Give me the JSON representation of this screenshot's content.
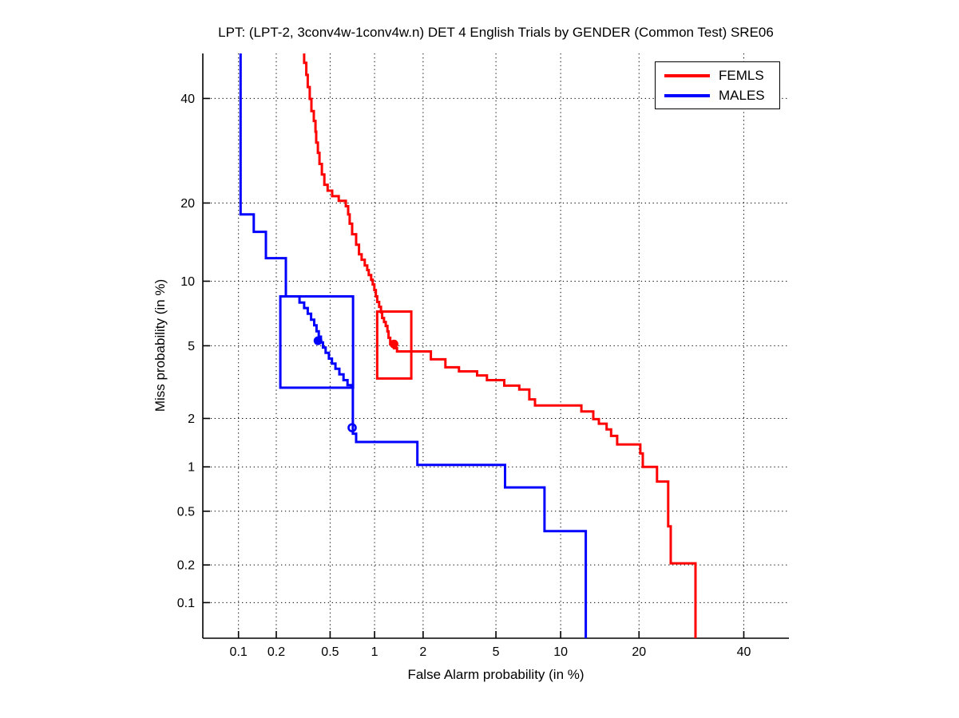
{
  "figure": {
    "title": "LPT: (LPT-2, 3conv4w-1conv4w.n) DET 4 English Trials by GENDER (Common Test) SRE06",
    "xlabel": "False Alarm probability (in %)",
    "ylabel": "Miss probability (in %)"
  },
  "chart_data": {
    "type": "line",
    "subtype": "DET-curve",
    "title": "LPT: (LPT-2, 3conv4w-1conv4w.n) DET 4 English Trials by GENDER (Common Test) SRE06",
    "xlabel": "False Alarm probability (in %)",
    "ylabel": "Miss probability (in %)",
    "scale": "probit-probit (normal deviate scale on both axes)",
    "grid": "dotted",
    "legend_position": "top-right",
    "xlim": [
      0.05,
      50
    ],
    "ylim": [
      0.05,
      50
    ],
    "x_ticks": [
      0.1,
      0.2,
      0.5,
      1,
      2,
      5,
      10,
      20,
      40
    ],
    "y_ticks": [
      0.1,
      0.2,
      0.5,
      1,
      2,
      5,
      10,
      20,
      40
    ],
    "x_tick_labels": [
      "0.1",
      "0.2",
      "0.5",
      "1",
      "2",
      "5",
      "10",
      "20",
      "40"
    ],
    "y_tick_labels": [
      "0.1",
      "0.2",
      "0.5",
      "1",
      "2",
      "5",
      "10",
      "20",
      "40"
    ],
    "series": [
      {
        "name": "FEMLS",
        "color": "#ff0000",
        "points": [
          [
            0.325,
            50
          ],
          [
            0.325,
            47.9
          ],
          [
            0.337,
            47.9
          ],
          [
            0.337,
            45.2
          ],
          [
            0.345,
            45.2
          ],
          [
            0.345,
            42.5
          ],
          [
            0.357,
            42.5
          ],
          [
            0.357,
            39.9
          ],
          [
            0.367,
            39.9
          ],
          [
            0.367,
            37.3
          ],
          [
            0.382,
            37.3
          ],
          [
            0.382,
            35.2
          ],
          [
            0.393,
            35.2
          ],
          [
            0.393,
            33.0
          ],
          [
            0.398,
            33.0
          ],
          [
            0.398,
            30.8
          ],
          [
            0.409,
            30.8
          ],
          [
            0.409,
            28.8
          ],
          [
            0.42,
            28.8
          ],
          [
            0.42,
            26.7
          ],
          [
            0.437,
            26.7
          ],
          [
            0.437,
            24.8
          ],
          [
            0.455,
            24.8
          ],
          [
            0.455,
            23.0
          ],
          [
            0.48,
            23.0
          ],
          [
            0.48,
            22.0
          ],
          [
            0.517,
            22.0
          ],
          [
            0.517,
            21.1
          ],
          [
            0.574,
            21.1
          ],
          [
            0.574,
            20.35
          ],
          [
            0.643,
            20.35
          ],
          [
            0.643,
            19.5
          ],
          [
            0.667,
            19.5
          ],
          [
            0.667,
            18.25
          ],
          [
            0.683,
            18.25
          ],
          [
            0.683,
            16.9
          ],
          [
            0.71,
            16.9
          ],
          [
            0.71,
            15.45
          ],
          [
            0.755,
            15.45
          ],
          [
            0.755,
            14.1
          ],
          [
            0.79,
            14.1
          ],
          [
            0.79,
            12.93
          ],
          [
            0.822,
            12.93
          ],
          [
            0.822,
            12.28
          ],
          [
            0.862,
            12.28
          ],
          [
            0.862,
            11.65
          ],
          [
            0.895,
            11.65
          ],
          [
            0.895,
            11.15
          ],
          [
            0.916,
            11.15
          ],
          [
            0.916,
            10.63
          ],
          [
            0.95,
            10.63
          ],
          [
            0.95,
            10.15
          ],
          [
            0.973,
            10.15
          ],
          [
            0.973,
            9.68
          ],
          [
            0.997,
            9.68
          ],
          [
            0.997,
            9.15
          ],
          [
            1.02,
            9.15
          ],
          [
            1.02,
            8.58
          ],
          [
            1.04,
            8.58
          ],
          [
            1.04,
            8.1
          ],
          [
            1.07,
            8.1
          ],
          [
            1.07,
            7.7
          ],
          [
            1.1,
            7.7
          ],
          [
            1.1,
            7.26
          ],
          [
            1.12,
            7.26
          ],
          [
            1.12,
            6.83
          ],
          [
            1.15,
            6.83
          ],
          [
            1.15,
            6.54
          ],
          [
            1.18,
            6.54
          ],
          [
            1.18,
            6.26
          ],
          [
            1.21,
            6.26
          ],
          [
            1.21,
            5.89
          ],
          [
            1.23,
            5.89
          ],
          [
            1.23,
            5.48
          ],
          [
            1.26,
            5.48
          ],
          [
            1.26,
            5.09
          ],
          [
            1.33,
            5.09
          ],
          [
            1.33,
            4.86
          ],
          [
            1.39,
            4.86
          ],
          [
            1.39,
            4.68
          ],
          [
            1.48,
            4.68
          ],
          [
            2.22,
            4.68
          ],
          [
            2.22,
            4.26
          ],
          [
            2.69,
            4.26
          ],
          [
            2.69,
            3.87
          ],
          [
            3.2,
            3.87
          ],
          [
            3.2,
            3.68
          ],
          [
            4.0,
            3.68
          ],
          [
            4.0,
            3.5
          ],
          [
            4.5,
            3.5
          ],
          [
            4.5,
            3.3
          ],
          [
            5.5,
            3.3
          ],
          [
            5.5,
            3.08
          ],
          [
            6.5,
            3.08
          ],
          [
            6.5,
            2.93
          ],
          [
            7.25,
            2.93
          ],
          [
            7.25,
            2.58
          ],
          [
            7.7,
            2.58
          ],
          [
            7.7,
            2.38
          ],
          [
            12.2,
            2.38
          ],
          [
            12.2,
            2.2
          ],
          [
            13.6,
            2.2
          ],
          [
            13.6,
            1.98
          ],
          [
            14.3,
            1.98
          ],
          [
            14.3,
            1.86
          ],
          [
            15.3,
            1.86
          ],
          [
            15.3,
            1.72
          ],
          [
            15.9,
            1.72
          ],
          [
            15.9,
            1.57
          ],
          [
            16.75,
            1.57
          ],
          [
            16.75,
            1.39
          ],
          [
            20.2,
            1.39
          ],
          [
            20.2,
            1.22
          ],
          [
            20.6,
            1.22
          ],
          [
            20.6,
            1.0
          ],
          [
            22.95,
            1.0
          ],
          [
            22.95,
            0.8
          ],
          [
            24.9,
            0.8
          ],
          [
            24.9,
            0.39
          ],
          [
            25.35,
            0.39
          ],
          [
            25.35,
            0.206
          ],
          [
            30.0,
            0.206
          ],
          [
            30.0,
            0.05
          ]
        ],
        "operating_point": {
          "fa": 1.33,
          "miss": 5.1,
          "marker": "filled-circle"
        },
        "confidence_box": {
          "fa": [
            1.04,
            1.7
          ],
          "miss": [
            3.37,
            7.32
          ]
        }
      },
      {
        "name": "MALES",
        "color": "#0000ff",
        "points": [
          [
            0.104,
            50
          ],
          [
            0.104,
            18.25
          ],
          [
            0.133,
            18.25
          ],
          [
            0.133,
            15.77
          ],
          [
            0.166,
            15.77
          ],
          [
            0.166,
            12.47
          ],
          [
            0.237,
            12.47
          ],
          [
            0.237,
            8.58
          ],
          [
            0.3,
            8.58
          ],
          [
            0.3,
            8.05
          ],
          [
            0.325,
            8.05
          ],
          [
            0.325,
            7.6
          ],
          [
            0.345,
            7.6
          ],
          [
            0.345,
            7.15
          ],
          [
            0.365,
            7.15
          ],
          [
            0.365,
            6.7
          ],
          [
            0.385,
            6.7
          ],
          [
            0.385,
            6.3
          ],
          [
            0.4,
            6.3
          ],
          [
            0.4,
            5.9
          ],
          [
            0.415,
            5.9
          ],
          [
            0.415,
            5.55
          ],
          [
            0.43,
            5.55
          ],
          [
            0.43,
            5.2
          ],
          [
            0.445,
            5.2
          ],
          [
            0.445,
            4.9
          ],
          [
            0.465,
            4.9
          ],
          [
            0.465,
            4.6
          ],
          [
            0.49,
            4.6
          ],
          [
            0.49,
            4.3
          ],
          [
            0.515,
            4.3
          ],
          [
            0.515,
            4.05
          ],
          [
            0.545,
            4.05
          ],
          [
            0.545,
            3.8
          ],
          [
            0.58,
            3.8
          ],
          [
            0.58,
            3.55
          ],
          [
            0.62,
            3.55
          ],
          [
            0.62,
            3.3
          ],
          [
            0.66,
            3.3
          ],
          [
            0.66,
            3.1
          ],
          [
            0.7,
            3.1
          ],
          [
            0.7,
            3.01
          ],
          [
            0.718,
            3.01
          ],
          [
            0.718,
            1.62
          ],
          [
            0.755,
            1.62
          ],
          [
            0.755,
            1.44
          ],
          [
            1.85,
            1.44
          ],
          [
            1.85,
            1.03
          ],
          [
            5.55,
            1.03
          ],
          [
            5.55,
            0.73
          ],
          [
            8.5,
            0.73
          ],
          [
            8.5,
            0.36
          ],
          [
            12.7,
            0.36
          ],
          [
            12.7,
            0.05
          ]
        ],
        "operating_point": {
          "fa": 0.41,
          "miss": 5.3,
          "marker": "filled-circle"
        },
        "min_dcf_point": {
          "fa": 0.71,
          "miss": 1.76,
          "marker": "open-circle"
        },
        "confidence_box": {
          "fa": [
            0.215,
            0.72
          ],
          "miss": [
            3.0,
            8.58
          ]
        }
      }
    ]
  }
}
